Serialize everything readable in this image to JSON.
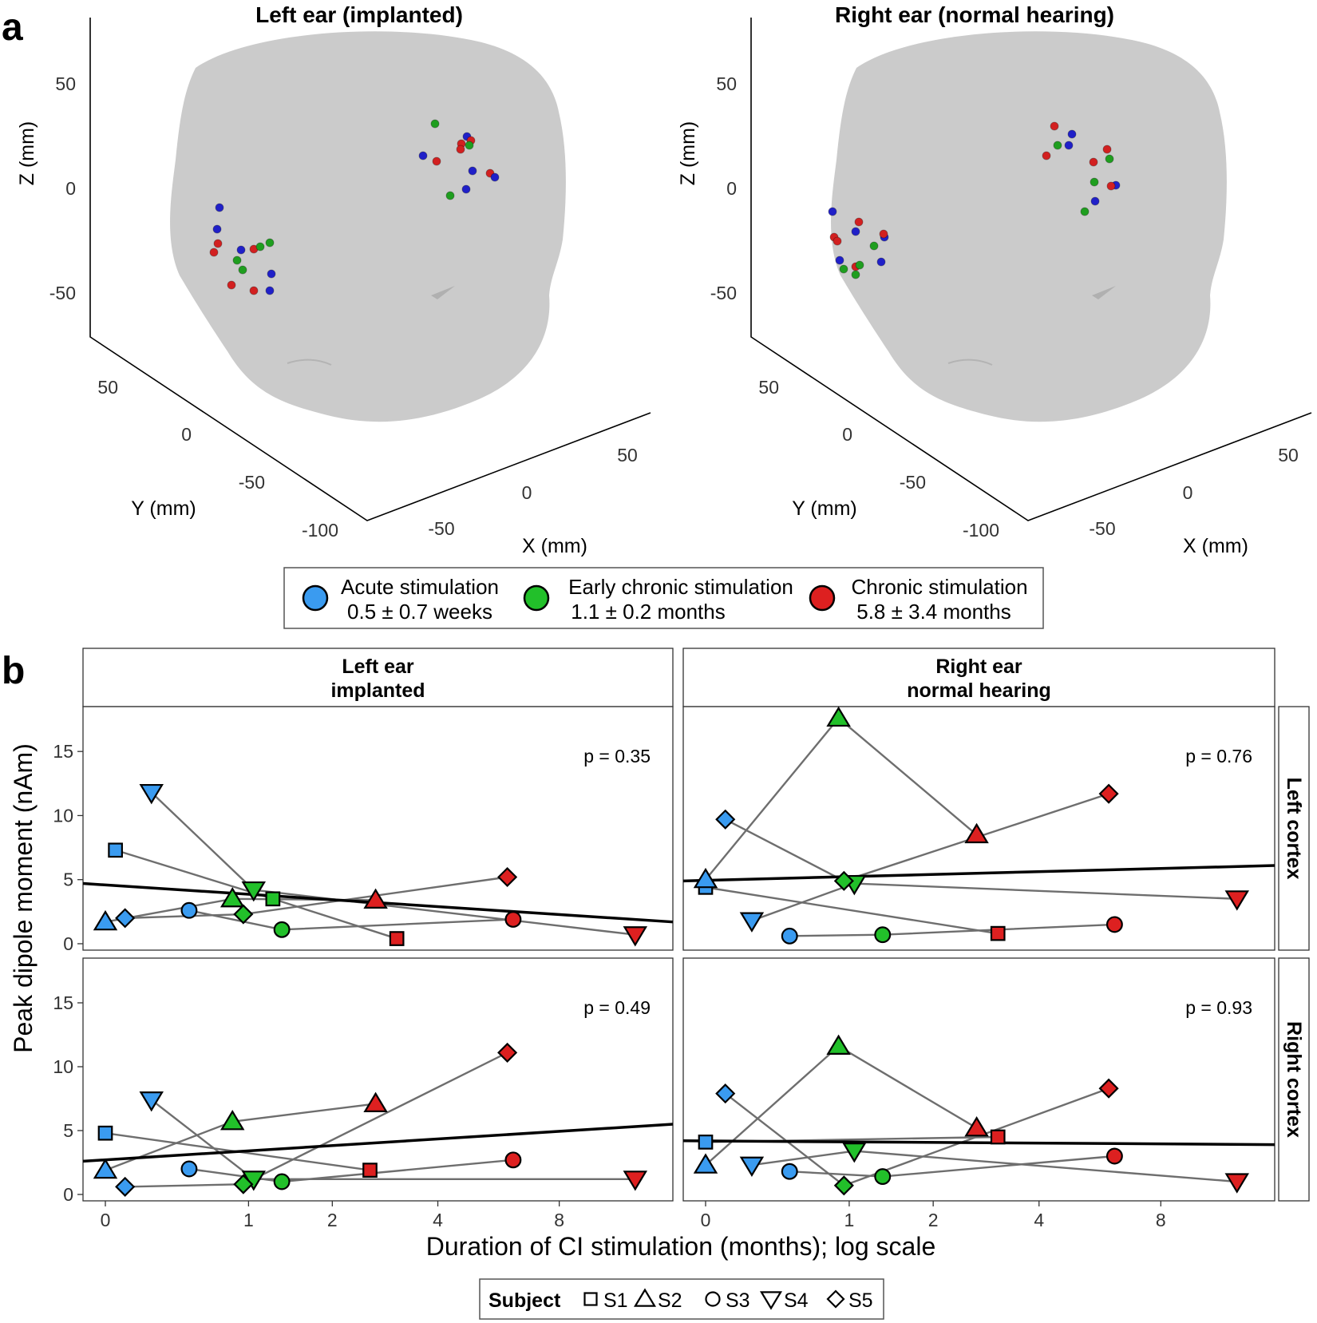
{
  "panel_labels": {
    "a": "a",
    "b": "b"
  },
  "colors": {
    "acute": "#3a9bf0",
    "early": "#22c02a",
    "chronic": "#dd2020",
    "dot_blue": "#2020c8",
    "dot_green": "#1f9e1f",
    "dot_red": "#d22020",
    "head": "#cbcbcb"
  },
  "panel_a": {
    "left_title": "Left ear (implanted)",
    "right_title": "Right ear (normal hearing)",
    "z_label": "Z (mm)",
    "y_label": "Y (mm)",
    "x_label": "X (mm)",
    "z_ticks": [
      "50",
      "0",
      "-50"
    ],
    "y_ticks": [
      "50",
      "0",
      "-50",
      "-100"
    ],
    "x_ticks": [
      "-50",
      "0",
      "50"
    ],
    "legend": [
      {
        "line1": "Acute stimulation",
        "line2": "0.5 ± 0.7 weeks",
        "color": "#3a9bf0"
      },
      {
        "line1": "Early chronic stimulation",
        "line2": "1.1 ± 0.2 months",
        "color": "#22c02a"
      },
      {
        "line1": "Chronic stimulation",
        "line2": "5.8 ± 3.4 months",
        "color": "#dd2020"
      }
    ]
  },
  "chart_data": {
    "type": "scatter",
    "title": "",
    "xlabel": "Duration of CI stimulation (months); log scale",
    "ylabel": "Peak dipole moment (nAm)",
    "x_ticks": [
      0,
      1,
      2,
      4,
      8
    ],
    "y_ticks": [
      0,
      5,
      10,
      15
    ],
    "ylim": [
      -0.5,
      18.5
    ],
    "column_strips": [
      [
        "Left ear",
        "implanted"
      ],
      [
        "Right ear",
        "normal hearing"
      ]
    ],
    "row_strips": [
      "Left cortex",
      "Right cortex"
    ],
    "legend_title": "Subject",
    "subjects": [
      {
        "name": "S1",
        "shape": "square"
      },
      {
        "name": "S2",
        "shape": "triangle"
      },
      {
        "name": "S3",
        "shape": "circle"
      },
      {
        "name": "S4",
        "shape": "triangle-down"
      },
      {
        "name": "S5",
        "shape": "diamond"
      }
    ],
    "facets": [
      {
        "row": 0,
        "col": 0,
        "p_label": "p =  0.35",
        "fit": [
          4.7,
          1.7
        ],
        "subjects": [
          {
            "s": 0,
            "pts": [
              [
                0.05,
                7.3,
                "a"
              ],
              [
                1.25,
                3.5,
                "e"
              ],
              [
                3.1,
                0.4,
                "c"
              ]
            ]
          },
          {
            "s": 1,
            "pts": [
              [
                0.0,
                1.7,
                "a"
              ],
              [
                0.85,
                3.5,
                "e"
              ],
              [
                2.7,
                3.4,
                "c"
              ]
            ]
          },
          {
            "s": 2,
            "pts": [
              [
                0.5,
                2.6,
                "a"
              ],
              [
                1.35,
                1.1,
                "e"
              ],
              [
                6.2,
                1.9,
                "c"
              ]
            ]
          },
          {
            "s": 3,
            "pts": [
              [
                0.25,
                11.8,
                "a"
              ],
              [
                1.05,
                4.2,
                "e"
              ],
              [
                12.0,
                0.7,
                "c"
              ]
            ]
          },
          {
            "s": 4,
            "pts": [
              [
                0.1,
                2.0,
                "a"
              ],
              [
                0.95,
                2.3,
                "e"
              ],
              [
                6.0,
                5.2,
                "c"
              ]
            ]
          }
        ]
      },
      {
        "row": 0,
        "col": 1,
        "p_label": "p =  0.76",
        "fit": [
          4.9,
          6.1
        ],
        "subjects": [
          {
            "s": 0,
            "pts": [
              [
                0.0,
                4.4,
                "a"
              ],
              [
                3.1,
                0.8,
                "c"
              ]
            ]
          },
          {
            "s": 1,
            "pts": [
              [
                0.0,
                5.0,
                "a"
              ],
              [
                0.9,
                17.6,
                "e"
              ],
              [
                2.7,
                8.5,
                "c"
              ]
            ]
          },
          {
            "s": 2,
            "pts": [
              [
                0.5,
                0.6,
                "a"
              ],
              [
                1.35,
                0.7,
                "e"
              ],
              [
                6.2,
                1.5,
                "c"
              ]
            ]
          },
          {
            "s": 3,
            "pts": [
              [
                0.25,
                1.8,
                "a"
              ],
              [
                1.05,
                4.7,
                "e"
              ],
              [
                12.0,
                3.5,
                "c"
              ]
            ]
          },
          {
            "s": 4,
            "pts": [
              [
                0.1,
                9.7,
                "a"
              ],
              [
                0.95,
                4.9,
                "e"
              ],
              [
                6.0,
                11.7,
                "c"
              ]
            ]
          }
        ]
      },
      {
        "row": 1,
        "col": 0,
        "p_label": "p =  0.49",
        "fit": [
          2.6,
          5.5
        ],
        "subjects": [
          {
            "s": 0,
            "pts": [
              [
                0.0,
                4.8,
                "a"
              ],
              [
                2.6,
                1.9,
                "c"
              ]
            ]
          },
          {
            "s": 1,
            "pts": [
              [
                0.0,
                1.9,
                "a"
              ],
              [
                0.85,
                5.7,
                "e"
              ],
              [
                2.7,
                7.1,
                "c"
              ]
            ]
          },
          {
            "s": 2,
            "pts": [
              [
                0.5,
                2.0,
                "a"
              ],
              [
                1.35,
                1.0,
                "e"
              ],
              [
                6.2,
                2.7,
                "c"
              ]
            ]
          },
          {
            "s": 3,
            "pts": [
              [
                0.25,
                7.4,
                "a"
              ],
              [
                1.05,
                1.2,
                "e"
              ],
              [
                12.0,
                1.2,
                "c"
              ]
            ]
          },
          {
            "s": 4,
            "pts": [
              [
                0.1,
                0.6,
                "a"
              ],
              [
                0.95,
                0.8,
                "e"
              ],
              [
                6.0,
                11.1,
                "c"
              ]
            ]
          }
        ]
      },
      {
        "row": 1,
        "col": 1,
        "p_label": "p =  0.93",
        "fit": [
          4.2,
          3.9
        ],
        "subjects": [
          {
            "s": 0,
            "pts": [
              [
                0.0,
                4.1,
                "a"
              ],
              [
                3.1,
                4.5,
                "c"
              ]
            ]
          },
          {
            "s": 1,
            "pts": [
              [
                0.0,
                2.3,
                "a"
              ],
              [
                0.9,
                11.6,
                "e"
              ],
              [
                2.7,
                5.2,
                "c"
              ]
            ]
          },
          {
            "s": 2,
            "pts": [
              [
                0.5,
                1.8,
                "a"
              ],
              [
                1.35,
                1.4,
                "e"
              ],
              [
                6.2,
                3.0,
                "c"
              ]
            ]
          },
          {
            "s": 3,
            "pts": [
              [
                0.25,
                2.3,
                "a"
              ],
              [
                1.05,
                3.4,
                "e"
              ],
              [
                12.0,
                1.0,
                "c"
              ]
            ]
          },
          {
            "s": 4,
            "pts": [
              [
                0.1,
                7.9,
                "a"
              ],
              [
                0.95,
                0.7,
                "e"
              ],
              [
                6.0,
                8.3,
                "c"
              ]
            ]
          }
        ]
      }
    ]
  }
}
